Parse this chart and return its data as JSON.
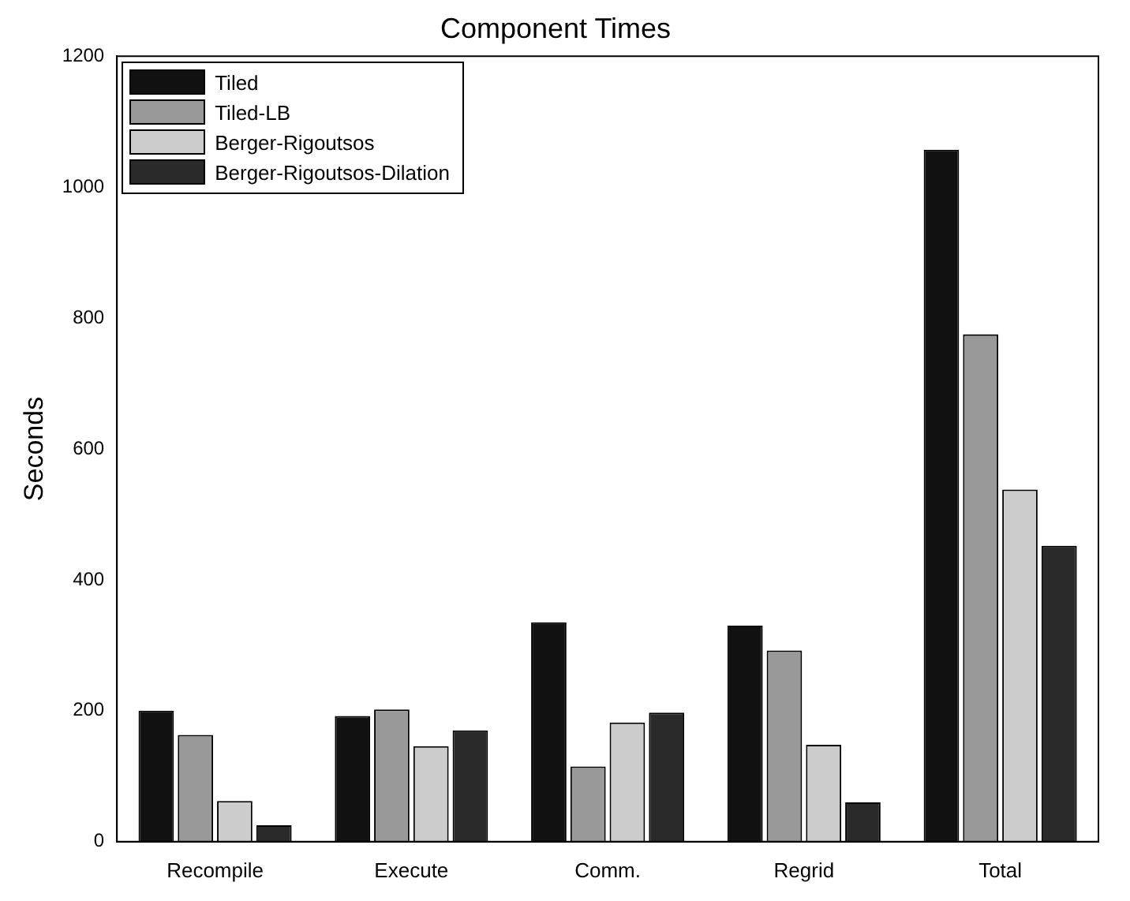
{
  "chart_data": {
    "type": "bar",
    "title": "Component Times",
    "ylabel": "Seconds",
    "categories": [
      "Recompile",
      "Execute",
      "Comm.",
      "Regrid",
      "Total"
    ],
    "series": [
      {
        "name": "Tiled",
        "color": "#111111",
        "values": [
          200,
          192,
          335,
          330,
          1057
        ]
      },
      {
        "name": "Tiled-LB",
        "color": "#999999",
        "values": [
          163,
          202,
          115,
          292,
          775
        ]
      },
      {
        "name": "Berger-Rigoutsos",
        "color": "#cccccc",
        "values": [
          62,
          146,
          182,
          148,
          538
        ]
      },
      {
        "name": "Berger-Rigoutsos-Dilation",
        "color": "#2a2a2a",
        "values": [
          25,
          170,
          197,
          60,
          452
        ]
      }
    ],
    "ylim": [
      0,
      1200
    ],
    "yticks": [
      0,
      200,
      400,
      600,
      800,
      1000,
      1200
    ],
    "grid": false,
    "legend": "top left"
  }
}
